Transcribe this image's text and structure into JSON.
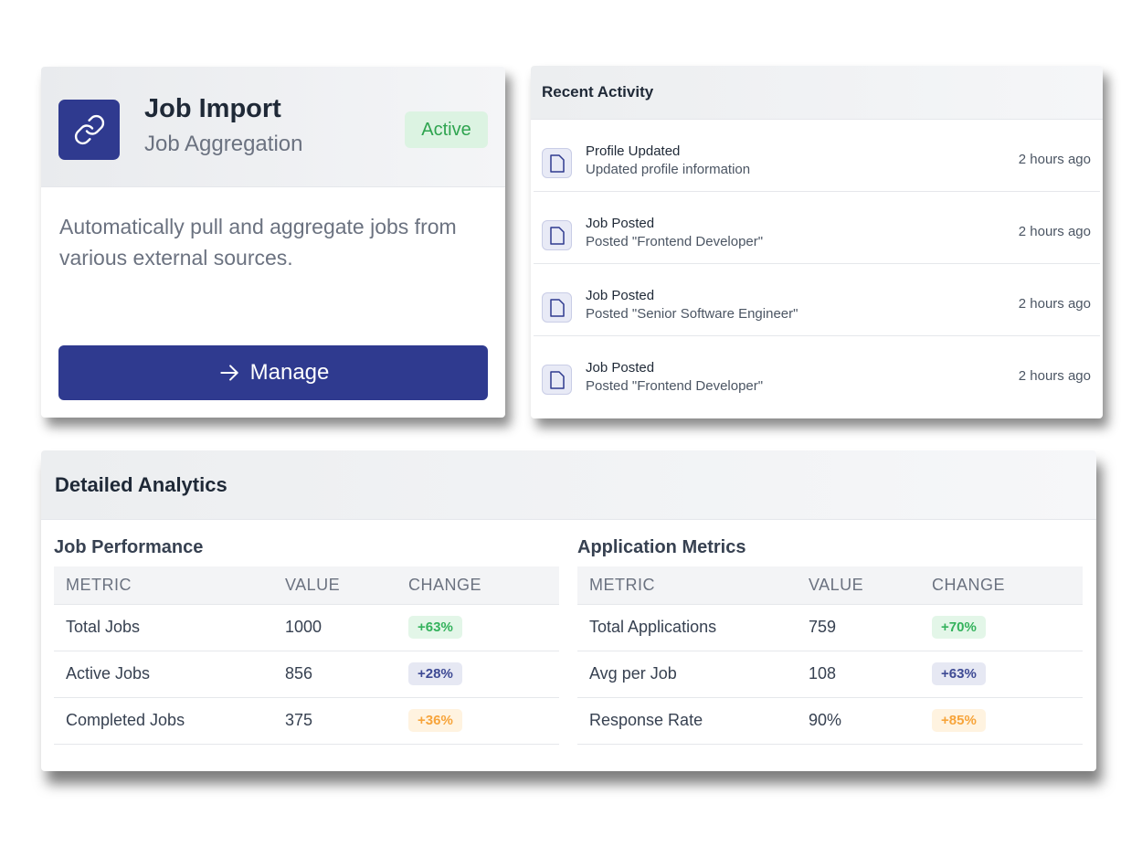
{
  "job_card": {
    "title": "Job Import",
    "subtitle": "Job Aggregation",
    "status": "Active",
    "description": "Automatically pull and aggregate jobs from various external sources.",
    "manage_label": "Manage",
    "icon": "link-icon",
    "accent": "#2f3a8f"
  },
  "activity": {
    "title": "Recent Activity",
    "items": [
      {
        "title": "Profile Updated",
        "subtitle": "Updated profile information",
        "time": "2 hours ago"
      },
      {
        "title": "Job Posted",
        "subtitle": "Posted \"Frontend Developer\"",
        "time": "2 hours ago"
      },
      {
        "title": "Job Posted",
        "subtitle": "Posted \"Senior Software Engineer\"",
        "time": "2 hours ago"
      },
      {
        "title": "Job Posted",
        "subtitle": "Posted \"Frontend Developer\"",
        "time": "2 hours ago"
      }
    ]
  },
  "analytics": {
    "title": "Detailed Analytics",
    "columns": [
      "METRIC",
      "VALUE",
      "CHANGE"
    ],
    "job_performance": {
      "title": "Job Performance",
      "rows": [
        {
          "metric": "Total Jobs",
          "value": "1000",
          "change": "+63%",
          "tone": "green"
        },
        {
          "metric": "Active Jobs",
          "value": "856",
          "change": "+28%",
          "tone": "indigo"
        },
        {
          "metric": "Completed Jobs",
          "value": "375",
          "change": "+36%",
          "tone": "orange"
        }
      ]
    },
    "application_metrics": {
      "title": "Application Metrics",
      "rows": [
        {
          "metric": "Total Applications",
          "value": "759",
          "change": "+70%",
          "tone": "green"
        },
        {
          "metric": "Avg per Job",
          "value": "108",
          "change": "+63%",
          "tone": "indigo"
        },
        {
          "metric": "Response Rate",
          "value": "90%",
          "change": "+85%",
          "tone": "orange"
        }
      ]
    }
  }
}
